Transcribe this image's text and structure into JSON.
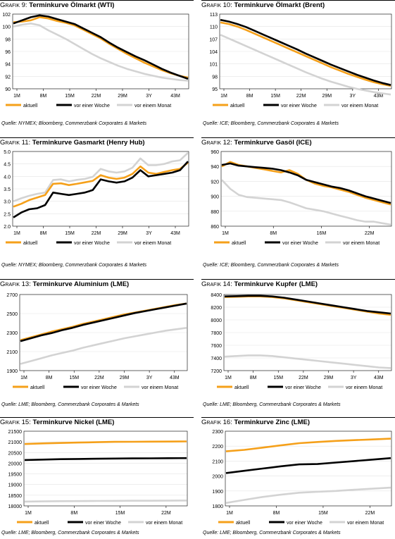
{
  "colors": {
    "aktuell": "#F5A01A",
    "woche": "#000000",
    "monat": "#D3D3D3"
  },
  "legend": [
    "aktuell",
    "vor einer Woche",
    "vor einem Monat"
  ],
  "charts": [
    {
      "id": "g9",
      "prefix": "Grafik 9:",
      "name": "Terminkurve Ölmarkt (WTI)",
      "source": "Quelle: NYMEX; Bloomberg, Commerzbank Corporates & Markets",
      "chart_data": {
        "type": "line",
        "x_ticks": [
          "1M",
          "8M",
          "15M",
          "22M",
          "29M",
          "3Y",
          "43M"
        ],
        "y_ticks": [
          "90",
          "92",
          "94",
          "96",
          "98",
          "100",
          "102"
        ],
        "ylim": [
          90,
          102
        ],
        "series": [
          {
            "name": "aktuell",
            "values": [
              100.7,
              100.8,
              101.0,
              101.5,
              101.3,
              100.9,
              100.6,
              100.2,
              99.5,
              98.8,
              98.1,
              97.2,
              96.4,
              95.6,
              94.9,
              94.2,
              93.6,
              93.0,
              92.5,
              92.1,
              91.8
            ]
          },
          {
            "name": "vor einer Woche",
            "values": [
              100.5,
              101.0,
              101.5,
              101.8,
              101.6,
              101.2,
              100.8,
              100.4,
              99.7,
              99.0,
              98.3,
              97.4,
              96.6,
              95.9,
              95.2,
              94.6,
              93.9,
              93.2,
              92.6,
              92.1,
              91.6
            ]
          },
          {
            "name": "vor einem Monat",
            "values": [
              100.0,
              100.3,
              100.5,
              100.2,
              99.4,
              98.7,
              98.0,
              97.2,
              96.4,
              95.6,
              94.9,
              94.3,
              93.7,
              93.2,
              92.8,
              92.4,
              92.1,
              91.8,
              91.6,
              91.4,
              91.3
            ]
          }
        ]
      }
    },
    {
      "id": "g10",
      "prefix": "Grafik 10:",
      "name": "Terminkurve Ölmarkt (Brent)",
      "source": "Quelle: ICE; Bloomberg, Commerzbank Corporates & Markets",
      "chart_data": {
        "type": "line",
        "x_ticks": [
          "1M",
          "8M",
          "15M",
          "22M",
          "29M",
          "3Y",
          "43M"
        ],
        "y_ticks": [
          "95",
          "98",
          "101",
          "104",
          "107",
          "110",
          "113"
        ],
        "ylim": [
          95,
          113
        ],
        "series": [
          {
            "name": "aktuell",
            "values": [
              111.0,
              110.6,
              110.0,
              109.2,
              108.3,
              107.4,
              106.5,
              105.6,
              104.7,
              103.8,
              102.9,
              102.0,
              101.1,
              100.2,
              99.4,
              98.6,
              97.9,
              97.2,
              96.6,
              96.1,
              95.7
            ]
          },
          {
            "name": "vor einer Woche",
            "values": [
              111.6,
              111.2,
              110.6,
              109.9,
              109.0,
              108.1,
              107.2,
              106.3,
              105.4,
              104.5,
              103.5,
              102.6,
              101.7,
              100.8,
              100.0,
              99.2,
              98.4,
              97.7,
              97.0,
              96.4,
              95.9
            ]
          },
          {
            "name": "vor einem Monat",
            "values": [
              108.0,
              107.1,
              106.2,
              105.3,
              104.4,
              103.5,
              102.6,
              101.7,
              100.8,
              99.9,
              99.0,
              98.2,
              97.4,
              96.7,
              96.1,
              95.5,
              95.0,
              94.6,
              94.2,
              93.9,
              93.6
            ]
          }
        ]
      }
    },
    {
      "id": "g11",
      "prefix": "Grafik 11:",
      "name": "Terminkurve Gasmarkt (Henry Hub)",
      "source": "Quelle: NYMEX; Bloomberg, Commerzbank Corporates & Markets",
      "chart_data": {
        "type": "line",
        "x_ticks": [
          "1M",
          "8M",
          "15M",
          "22M",
          "29M",
          "3Y",
          "43M"
        ],
        "y_ticks": [
          "2.0",
          "2.5",
          "3.0",
          "3.5",
          "4.0",
          "4.5",
          "5.0"
        ],
        "ylim": [
          2.0,
          5.0
        ],
        "series": [
          {
            "name": "aktuell",
            "values": [
              2.78,
              2.9,
              3.05,
              3.15,
              3.25,
              3.7,
              3.72,
              3.65,
              3.7,
              3.76,
              3.82,
              4.05,
              3.95,
              3.9,
              3.95,
              4.1,
              4.4,
              4.15,
              4.1,
              4.18,
              4.25,
              4.3,
              4.55
            ]
          },
          {
            "name": "vor einer Woche",
            "values": [
              2.35,
              2.55,
              2.68,
              2.72,
              2.85,
              3.35,
              3.3,
              3.25,
              3.3,
              3.35,
              3.45,
              3.88,
              3.8,
              3.75,
              3.8,
              3.95,
              4.25,
              4.0,
              4.05,
              4.1,
              4.15,
              4.25,
              4.6
            ]
          },
          {
            "name": "vor einem Monat",
            "values": [
              3.0,
              3.12,
              3.22,
              3.3,
              3.35,
              3.85,
              3.88,
              3.8,
              3.86,
              3.9,
              3.98,
              4.3,
              4.2,
              4.15,
              4.2,
              4.35,
              4.72,
              4.45,
              4.45,
              4.5,
              4.6,
              4.65,
              4.95
            ]
          }
        ]
      }
    },
    {
      "id": "g12",
      "prefix": "Grafik 12:",
      "name": "Terminkurve Gasöl (ICE)",
      "source": "Quelle: ICE; Bloomberg, Commerzbank Corporates & Markets",
      "chart_data": {
        "type": "line",
        "x_ticks": [
          "1M",
          "8M",
          "16M",
          "22M"
        ],
        "y_ticks": [
          "860",
          "880",
          "900",
          "920",
          "940",
          "960"
        ],
        "ylim": [
          860,
          960
        ],
        "series": [
          {
            "name": "aktuell",
            "values": [
              940,
              946,
              942,
              940,
              938,
              936,
              934,
              932,
              935,
              930,
              922,
              917,
              914,
              912,
              909,
              906,
              902,
              898,
              895,
              892,
              889
            ]
          },
          {
            "name": "vor einer Woche",
            "values": [
              942,
              944,
              941,
              940,
              939,
              938,
              937,
              935,
              932,
              928,
              922,
              919,
              916,
              913,
              911,
              908,
              904,
              900,
              897,
              894,
              891
            ]
          },
          {
            "name": "vor einem Monat",
            "values": [
              922,
              910,
              902,
              899,
              898,
              897,
              896,
              895,
              892,
              888,
              884,
              882,
              880,
              877,
              874,
              871,
              868,
              866,
              866,
              864,
              862
            ]
          }
        ]
      }
    },
    {
      "id": "g13",
      "prefix": "Grafik 13:",
      "name": "Terminkurve Aluminium (LME)",
      "source": "Quelle: LME; Bloomberg, Commerzbank Corporates & Markets",
      "chart_data": {
        "type": "line",
        "x_ticks": [
          "1M",
          "8M",
          "15M",
          "22M",
          "29M",
          "3Y",
          "43M"
        ],
        "y_ticks": [
          "1900",
          "2100",
          "2300",
          "2500",
          "2700"
        ],
        "ylim": [
          1900,
          2700
        ],
        "series": [
          {
            "name": "aktuell",
            "values": [
              2220,
              2250,
              2280,
              2310,
              2335,
              2360,
              2390,
              2415,
              2440,
              2465,
              2490,
              2510,
              2530,
              2550,
              2570,
              2590,
              2605
            ]
          },
          {
            "name": "vor einer Woche",
            "values": [
              2210,
              2240,
              2270,
              2295,
              2325,
              2350,
              2380,
              2405,
              2430,
              2455,
              2480,
              2505,
              2525,
              2545,
              2565,
              2585,
              2605
            ]
          },
          {
            "name": "vor einem Monat",
            "values": [
              1970,
              2000,
              2030,
              2060,
              2085,
              2110,
              2140,
              2165,
              2190,
              2215,
              2240,
              2260,
              2280,
              2300,
              2320,
              2335,
              2350
            ]
          }
        ]
      }
    },
    {
      "id": "g14",
      "prefix": "Grafik 14:",
      "name": "Terminkurve Kupfer (LME)",
      "source": "Quelle: LME; Bloomberg, Commerzbank Corporates & Markets",
      "chart_data": {
        "type": "line",
        "x_ticks": [
          "1M",
          "8M",
          "15M",
          "22M",
          "29M",
          "3Y",
          "43M"
        ],
        "y_ticks": [
          "7200",
          "7400",
          "7600",
          "7800",
          "8000",
          "8200",
          "8400"
        ],
        "ylim": [
          7200,
          8400
        ],
        "series": [
          {
            "name": "aktuell",
            "values": [
              8360,
              8365,
              8370,
              8370,
              8360,
              8340,
              8310,
              8280,
              8250,
              8220,
              8190,
              8160,
              8130,
              8100,
              8080
            ]
          },
          {
            "name": "vor einer Woche",
            "values": [
              8370,
              8375,
              8380,
              8380,
              8370,
              8350,
              8320,
              8290,
              8260,
              8230,
              8200,
              8170,
              8140,
              8120,
              8100
            ]
          },
          {
            "name": "vor einem Monat",
            "values": [
              7420,
              7430,
              7440,
              7440,
              7430,
              7410,
              7390,
              7370,
              7350,
              7330,
              7310,
              7290,
              7270,
              7250,
              7240
            ]
          }
        ]
      }
    },
    {
      "id": "g15",
      "prefix": "Grafik 15:",
      "name": "Terminkurve Nickel (LME)",
      "source": "Quelle: LME; Bloomberg, Commerzbank Corporates & Markets",
      "chart_data": {
        "type": "line",
        "x_ticks": [
          "1M",
          "8M",
          "15M",
          "22M"
        ],
        "y_ticks": [
          "18000",
          "18500",
          "19000",
          "19500",
          "20000",
          "20500",
          "21000",
          "21500"
        ],
        "ylim": [
          18000,
          21500
        ],
        "series": [
          {
            "name": "aktuell",
            "values": [
              20900,
              20930,
              20950,
              20970,
              20985,
              21000,
              21005,
              21010,
              21015,
              21020
            ]
          },
          {
            "name": "vor einer Woche",
            "values": [
              20150,
              20170,
              20190,
              20200,
              20210,
              20220,
              20225,
              20230,
              20235,
              20240
            ]
          },
          {
            "name": "vor einem Monat",
            "values": [
              18200,
              18210,
              18220,
              18225,
              18230,
              18235,
              18240,
              18240,
              18245,
              18250
            ]
          }
        ]
      }
    },
    {
      "id": "g16",
      "prefix": "Grafik 16:",
      "name": "Terminkurve Zinc (LME)",
      "source": "Quelle: LME; Bloomberg, Commerzbank Corporates & Markets",
      "chart_data": {
        "type": "line",
        "x_ticks": [
          "1M",
          "8M",
          "15M",
          "22M"
        ],
        "y_ticks": [
          "1800",
          "1900",
          "2000",
          "2100",
          "2200",
          "2300"
        ],
        "ylim": [
          1800,
          2300
        ],
        "series": [
          {
            "name": "aktuell",
            "values": [
              2165,
              2175,
              2190,
              2205,
              2220,
              2228,
              2235,
              2240,
              2245,
              2250
            ]
          },
          {
            "name": "vor einer Woche",
            "values": [
              2020,
              2035,
              2050,
              2065,
              2078,
              2080,
              2090,
              2100,
              2110,
              2120
            ]
          },
          {
            "name": "vor einem Monat",
            "values": [
              1820,
              1840,
              1860,
              1875,
              1888,
              1895,
              1900,
              1908,
              1915,
              1922
            ]
          }
        ]
      }
    }
  ]
}
